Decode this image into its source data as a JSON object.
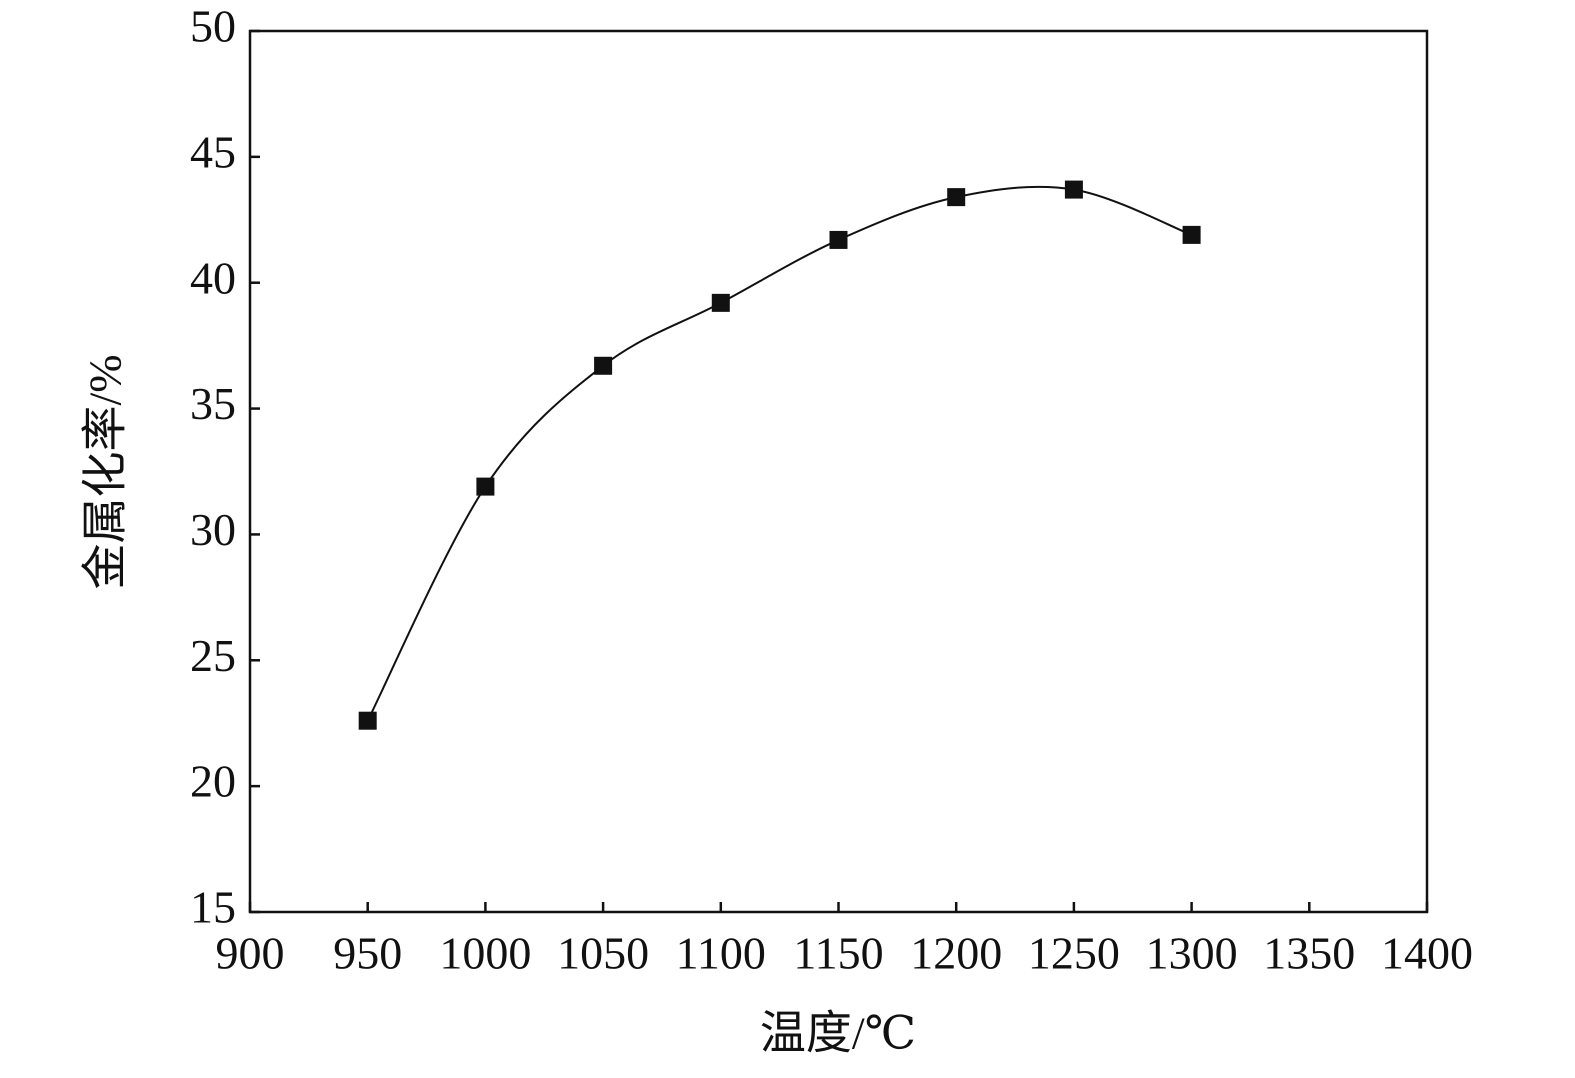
{
  "chart_data": {
    "type": "scatter",
    "x_label": "温度/℃",
    "y_label": "金属化率/%",
    "x": [
      950,
      1000,
      1050,
      1100,
      1150,
      1200,
      1250,
      1300
    ],
    "series": [
      {
        "color": "#111111",
        "values": [
          22.6,
          31.9,
          36.7,
          39.2,
          41.7,
          43.4,
          43.7,
          41.9
        ]
      }
    ],
    "xlim": [
      900,
      1400
    ],
    "xticks": [
      900,
      950,
      1000,
      1050,
      1100,
      1150,
      1200,
      1250,
      1300,
      1350,
      1400
    ],
    "ylim": [
      15,
      50
    ],
    "yticks": [
      15,
      20,
      25,
      30,
      35,
      40,
      45,
      50
    ],
    "smooth_curve": true
  }
}
